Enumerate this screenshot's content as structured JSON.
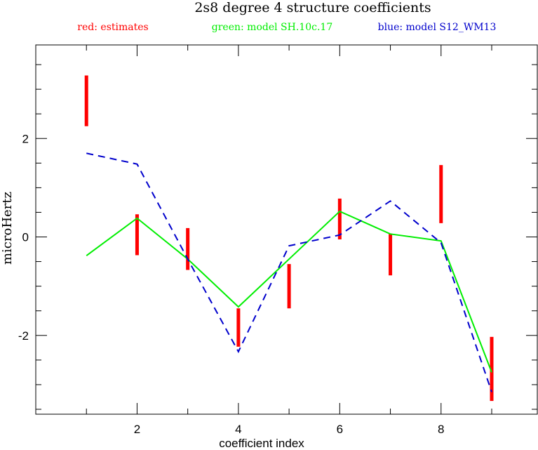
{
  "chart_data": {
    "type": "line",
    "title": "2s8 degree 4 structure coefficients",
    "xlabel": "coefficient index",
    "ylabel": "microHertz",
    "xlim": [
      0,
      9.9
    ],
    "ylim": [
      -3.6,
      3.9
    ],
    "x_ticks": [
      2,
      4,
      6,
      8
    ],
    "y_ticks": [
      -2,
      0,
      2
    ],
    "grid": false,
    "legend_position": "top",
    "legend": [
      {
        "label": "red: estimates",
        "color": "#ff0000"
      },
      {
        "label": "green: model SH.10c.17",
        "color": "#00ee00"
      },
      {
        "label": "blue: model S12_WM13",
        "color": "#0000cc"
      }
    ],
    "series": [
      {
        "key": "estimates",
        "style": "errorbar",
        "color": "#ff0000",
        "x": [
          1,
          2,
          3,
          4,
          5,
          6,
          7,
          8,
          9
        ],
        "low": [
          2.25,
          -0.37,
          -0.67,
          -2.23,
          -1.45,
          -0.05,
          -0.78,
          0.28,
          -3.33
        ],
        "high": [
          3.28,
          0.46,
          0.18,
          -1.45,
          -0.55,
          0.78,
          0.07,
          1.46,
          -2.03
        ]
      },
      {
        "key": "sh10c17",
        "style": "solid",
        "color": "#00ee00",
        "x": [
          1,
          2,
          3,
          4,
          5,
          6,
          7,
          8,
          9
        ],
        "y": [
          -0.38,
          0.38,
          -0.45,
          -1.42,
          -0.45,
          0.52,
          0.06,
          -0.08,
          -2.75
        ]
      },
      {
        "key": "s12wm13",
        "style": "dashed",
        "color": "#0000cc",
        "x": [
          1,
          2,
          3,
          4,
          5,
          6,
          7,
          8,
          9
        ],
        "y": [
          1.7,
          1.48,
          -0.45,
          -2.33,
          -0.18,
          0.04,
          0.73,
          -0.12,
          -3.15
        ]
      }
    ]
  }
}
